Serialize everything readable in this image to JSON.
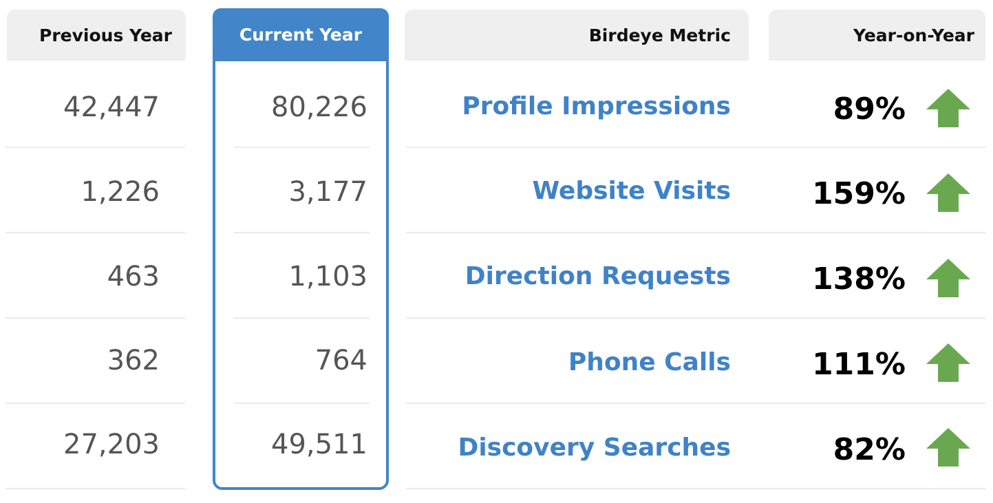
{
  "header": {
    "previous_year": "Previous Year",
    "current_year": "Current Year",
    "metric": "Birdeye Metric",
    "yoy": "Year-on-Year"
  },
  "colors": {
    "accent_blue": "#4285c9",
    "metric_text": "#3f82c8",
    "arrow_green": "#6aa84f",
    "header_bg": "#efefef"
  },
  "rows": [
    {
      "previous": "42,447",
      "current": "80,226",
      "metric": "Profile Impressions",
      "yoy": "89%",
      "trend_icon": "arrow-up-icon"
    },
    {
      "previous": "1,226",
      "current": "3,177",
      "metric": "Website Visits",
      "yoy": "159%",
      "trend_icon": "arrow-up-icon"
    },
    {
      "previous": "463",
      "current": "1,103",
      "metric": "Direction Requests",
      "yoy": "138%",
      "trend_icon": "arrow-up-icon"
    },
    {
      "previous": "362",
      "current": "764",
      "metric": "Phone Calls",
      "yoy": "111%",
      "trend_icon": "arrow-up-icon"
    },
    {
      "previous": "27,203",
      "current": "49,511",
      "metric": "Discovery Searches",
      "yoy": "82%",
      "trend_icon": "arrow-up-icon"
    }
  ],
  "chart_data": {
    "type": "table",
    "columns": [
      "Previous Year",
      "Current Year",
      "Birdeye Metric",
      "Year-on-Year"
    ],
    "rows": [
      [
        "42,447",
        "80,226",
        "Profile Impressions",
        "89%"
      ],
      [
        "1,226",
        "3,177",
        "Website Visits",
        "159%"
      ],
      [
        "463",
        "1,103",
        "Direction Requests",
        "138%"
      ],
      [
        "362",
        "764",
        "Phone Calls",
        "111%"
      ],
      [
        "27,203",
        "49,511",
        "Discovery Searches",
        "82%"
      ]
    ]
  }
}
